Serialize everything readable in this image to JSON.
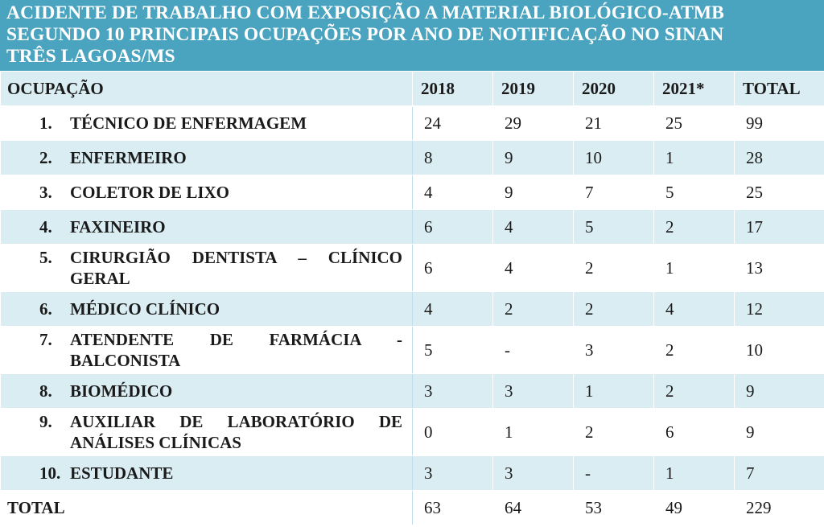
{
  "title": {
    "line1": "ACIDENTE DE TRABALHO COM EXPOSIÇÃO A MATERIAL BIOLÓGICO-ATMB",
    "line2": "SEGUNDO 10 PRINCIPAIS OCUPAÇÕES POR ANO DE NOTIFICAÇÃO NO SINAN",
    "line3": "TRÊS LAGOAS/MS"
  },
  "headers": {
    "occupation": "OCUPAÇÃO",
    "y2018": "2018",
    "y2019": "2019",
    "y2020": "2020",
    "y2021": "2021*",
    "total": "TOTAL"
  },
  "rows": [
    {
      "num": "1.",
      "label": "TÉCNICO DE ENFERMAGEM",
      "v2018": "24",
      "v2019": "29",
      "v2020": "21",
      "v2021": "25",
      "total": "99"
    },
    {
      "num": "2.",
      "label": "ENFERMEIRO",
      "v2018": "8",
      "v2019": "9",
      "v2020": "10",
      "v2021": "1",
      "total": "28"
    },
    {
      "num": "3.",
      "label": "COLETOR DE LIXO",
      "v2018": "4",
      "v2019": "9",
      "v2020": "7",
      "v2021": "5",
      "total": "25"
    },
    {
      "num": "4.",
      "label": "FAXINEIRO",
      "v2018": "6",
      "v2019": "4",
      "v2020": "5",
      "v2021": "2",
      "total": "17"
    },
    {
      "num": "5.",
      "label": "CIRURGIÃO DENTISTA – CLÍNICO GERAL",
      "v2018": "6",
      "v2019": "4",
      "v2020": "2",
      "v2021": "1",
      "total": "13"
    },
    {
      "num": "6.",
      "label": "MÉDICO CLÍNICO",
      "v2018": "4",
      "v2019": "2",
      "v2020": "2",
      "v2021": "4",
      "total": "12"
    },
    {
      "num": "7.",
      "label": "ATENDENTE DE FARMÁCIA - BALCONISTA",
      "v2018": "5",
      "v2019": "-",
      "v2020": "3",
      "v2021": "2",
      "total": "10"
    },
    {
      "num": "8.",
      "label": "BIOMÉDICO",
      "v2018": "3",
      "v2019": "3",
      "v2020": "1",
      "v2021": "2",
      "total": "9"
    },
    {
      "num": "9.",
      "label": "AUXILIAR DE LABORATÓRIO DE ANÁLISES CLÍNICAS",
      "v2018": "0",
      "v2019": "1",
      "v2020": "2",
      "v2021": "6",
      "total": "9"
    },
    {
      "num": "10.",
      "label": "ESTUDANTE",
      "v2018": "3",
      "v2019": "3",
      "v2020": "-",
      "v2021": "1",
      "total": "7"
    }
  ],
  "totals": {
    "label": "TOTAL",
    "v2018": "63",
    "v2019": "64",
    "v2020": "53",
    "v2021": "49",
    "total": "229"
  },
  "colors": {
    "title_background": "#4aa3bf",
    "stripe": "#d9edf3"
  }
}
